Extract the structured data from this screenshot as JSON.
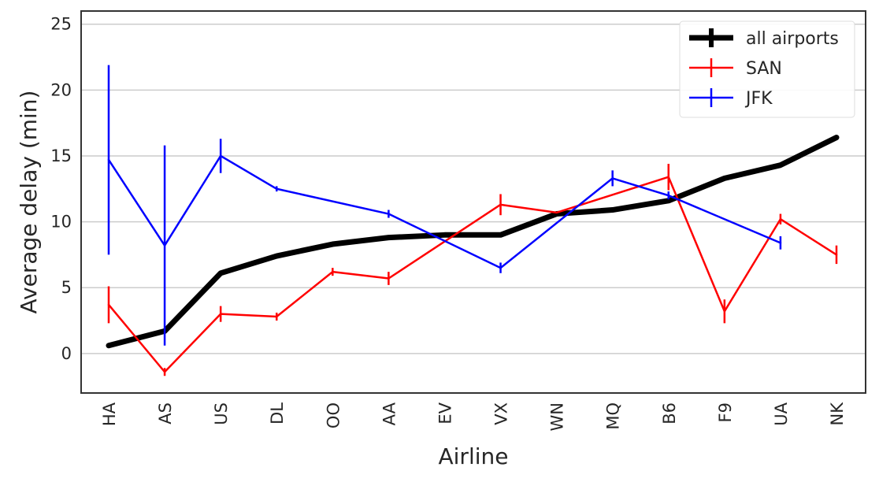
{
  "chart_data": {
    "type": "line",
    "title": "",
    "xlabel": "Airline",
    "ylabel": "Average delay (min)",
    "categories": [
      "HA",
      "AS",
      "US",
      "DL",
      "OO",
      "AA",
      "EV",
      "VX",
      "WN",
      "MQ",
      "B6",
      "F9",
      "UA",
      "NK"
    ],
    "ylim": [
      -3,
      26
    ],
    "yticks": [
      0,
      5,
      10,
      15,
      20,
      25
    ],
    "grid": "horizontal",
    "legend_position": "top-right",
    "series": [
      {
        "name": "all airports",
        "color": "#000000",
        "values": [
          0.6,
          1.7,
          6.1,
          7.4,
          8.3,
          8.8,
          9.0,
          9.0,
          10.6,
          10.9,
          11.6,
          13.3,
          14.3,
          16.4
        ],
        "errors": [
          null,
          null,
          null,
          null,
          null,
          null,
          null,
          null,
          null,
          null,
          null,
          null,
          null,
          null
        ]
      },
      {
        "name": "SAN",
        "color": "#ff0000",
        "values": [
          3.7,
          -1.4,
          3.0,
          2.8,
          6.2,
          5.7,
          null,
          11.3,
          10.7,
          null,
          13.4,
          3.2,
          10.2,
          7.5
        ],
        "errors": [
          1.4,
          0.3,
          0.6,
          0.3,
          0.3,
          0.5,
          null,
          0.8,
          null,
          null,
          1.0,
          0.9,
          0.4,
          0.7
        ]
      },
      {
        "name": "JFK",
        "color": "#0000ff",
        "values": [
          14.7,
          8.2,
          15.0,
          12.5,
          null,
          10.6,
          null,
          6.5,
          null,
          13.3,
          12.0,
          null,
          8.4,
          null
        ],
        "errors": [
          7.2,
          7.6,
          1.3,
          0.2,
          null,
          0.3,
          null,
          0.4,
          null,
          0.6,
          0.3,
          null,
          0.5,
          null
        ]
      }
    ]
  }
}
